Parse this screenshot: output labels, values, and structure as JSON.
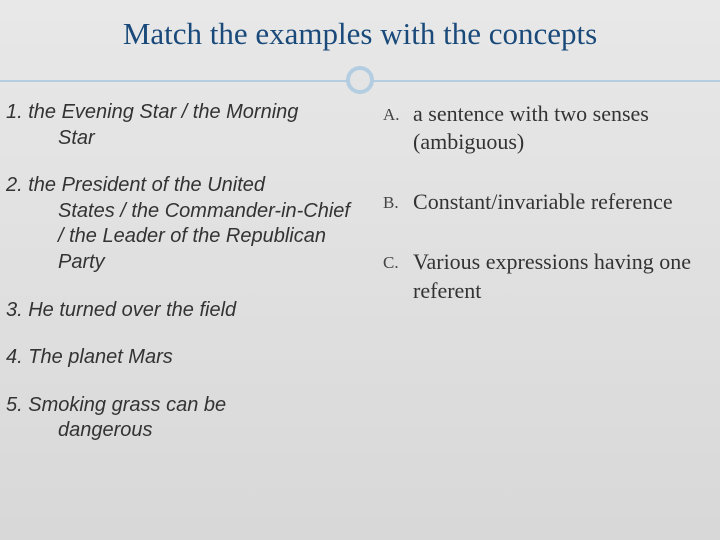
{
  "title": "Match the examples with the concepts",
  "examples": [
    {
      "num": "1.",
      "text": "the Evening Star / the Morning Star",
      "line1": "1. the Evening Star / the Morning",
      "line2": "Star"
    },
    {
      "num": "2.",
      "text": "the President of the United States / the Commander-in-Chief / the Leader of the Republican Party",
      "line1": "2. the President of the United",
      "line2": "States / the Commander-in-Chief / the Leader of the Republican Party"
    },
    {
      "num": "3.",
      "text": "He turned over the field",
      "line1": "3. He turned over the field"
    },
    {
      "num": "4.",
      "text": "The planet Mars",
      "line1": "4. The planet Mars"
    },
    {
      "num": "5.",
      "text": "Smoking grass can be dangerous",
      "line1": "5. Smoking grass can be",
      "line2": "dangerous"
    }
  ],
  "concepts": [
    {
      "letter": "A.",
      "text": "a sentence with two senses (ambiguous)"
    },
    {
      "letter": "B.",
      "text": "Constant/invariable reference"
    },
    {
      "letter": "C.",
      "text": "Various expressions having one referent"
    }
  ],
  "style": {
    "title_color": "#1a4a7a",
    "title_fontsize": 31,
    "divider_color": "#b4cde0",
    "example_fontsize": 20,
    "example_font": "Arial",
    "example_style": "italic",
    "concept_fontsize": 22,
    "concept_font": "Georgia",
    "letter_fontsize": 17,
    "background_gradient": [
      "#e8e8e8",
      "#d8d8d8"
    ],
    "text_color": "#333333",
    "slide_width": 720,
    "slide_height": 540
  }
}
